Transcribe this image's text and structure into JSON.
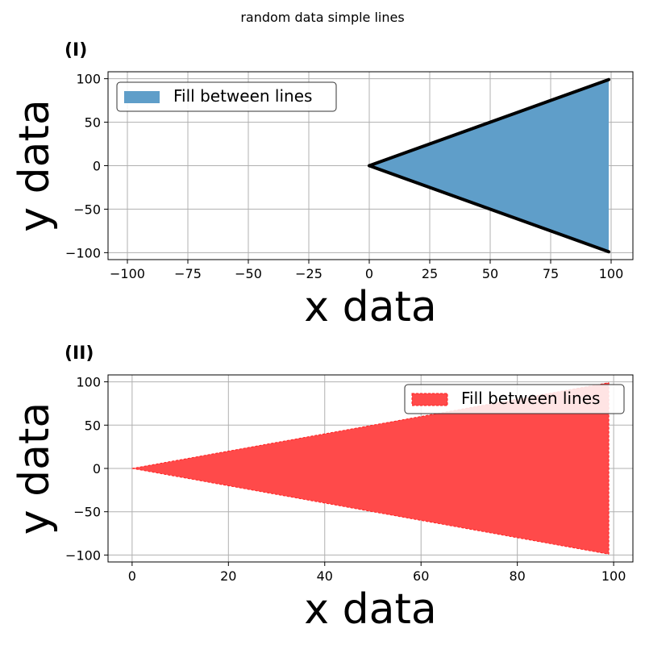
{
  "figure": {
    "suptitle": "random data simple lines"
  },
  "chart_data": [
    {
      "type": "area",
      "panel_label": "(I)",
      "xlabel": "x data",
      "ylabel": "y data",
      "xlim": [
        -108,
        109
      ],
      "ylim": [
        -108,
        108
      ],
      "xticks": [
        -100,
        -75,
        -50,
        -25,
        0,
        25,
        50,
        75,
        100
      ],
      "xtick_labels": [
        "−100",
        "−75",
        "−50",
        "−25",
        "0",
        "25",
        "50",
        "75",
        "100"
      ],
      "yticks": [
        -100,
        -50,
        0,
        50,
        100
      ],
      "ytick_labels": [
        "−100",
        "−50",
        "0",
        "50",
        "100"
      ],
      "grid": true,
      "legend": {
        "entries": [
          "Fill between lines"
        ],
        "placement": "upper-left"
      },
      "series": [
        {
          "name": "Fill between lines",
          "x": [
            0,
            99
          ],
          "upper": [
            0,
            99
          ],
          "lower": [
            0,
            -99
          ],
          "fill_color": "#5f9ec9",
          "edge_color": "#000000",
          "edge_style": "solid-thick"
        }
      ]
    },
    {
      "type": "area",
      "panel_label": "(II)",
      "xlabel": "x data",
      "ylabel": "y data",
      "xlim": [
        -5,
        104
      ],
      "ylim": [
        -108,
        108
      ],
      "xticks": [
        0,
        20,
        40,
        60,
        80,
        100
      ],
      "xtick_labels": [
        "0",
        "20",
        "40",
        "60",
        "80",
        "100"
      ],
      "yticks": [
        -100,
        -50,
        0,
        50,
        100
      ],
      "ytick_labels": [
        "−100",
        "−50",
        "0",
        "50",
        "100"
      ],
      "grid": true,
      "legend": {
        "entries": [
          "Fill between lines"
        ],
        "placement": "upper-right"
      },
      "series": [
        {
          "name": "Fill between lines",
          "x": [
            0,
            99
          ],
          "upper": [
            0,
            99
          ],
          "lower": [
            0,
            -99
          ],
          "fill_color": "#ff4a4a",
          "edge_color": "#ff2020",
          "edge_style": "dashed"
        }
      ]
    }
  ]
}
